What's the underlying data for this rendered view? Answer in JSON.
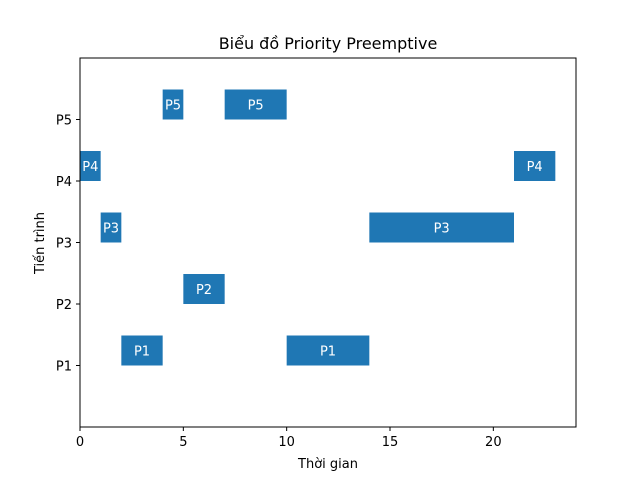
{
  "chart_data": {
    "type": "bar",
    "orientation": "horizontal-gantt",
    "title": "Biểu đồ Priority Preemptive",
    "xlabel": "Thời gian",
    "ylabel": "Tiến trình",
    "categories": [
      "P1",
      "P2",
      "P3",
      "P4",
      "P5"
    ],
    "xlim": [
      0,
      24
    ],
    "ylim": [
      0,
      6
    ],
    "x_ticks": [
      0,
      5,
      10,
      15,
      20
    ],
    "grid": false,
    "bar_color": "#1f77b4",
    "segments": [
      {
        "process": "P1",
        "start": 2,
        "end": 4,
        "label": "P1"
      },
      {
        "process": "P1",
        "start": 10,
        "end": 14,
        "label": "P1"
      },
      {
        "process": "P2",
        "start": 5,
        "end": 7,
        "label": "P2"
      },
      {
        "process": "P3",
        "start": 1,
        "end": 2,
        "label": "P3"
      },
      {
        "process": "P3",
        "start": 14,
        "end": 21,
        "label": "P3"
      },
      {
        "process": "P4",
        "start": 0,
        "end": 1,
        "label": "P4"
      },
      {
        "process": "P4",
        "start": 21,
        "end": 23,
        "label": "P4"
      },
      {
        "process": "P5",
        "start": 4,
        "end": 5,
        "label": "P5"
      },
      {
        "process": "P5",
        "start": 7,
        "end": 10,
        "label": "P5"
      }
    ]
  }
}
